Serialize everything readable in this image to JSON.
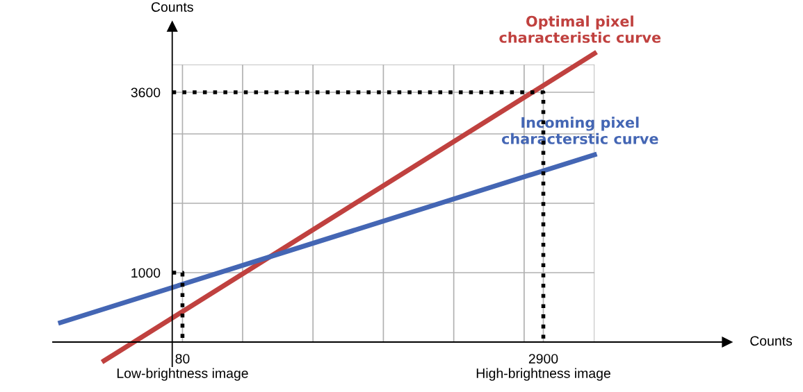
{
  "chart_data": {
    "type": "line",
    "xlabel": "Counts",
    "ylabel": "Counts",
    "xlim": [
      -933,
      4337
    ],
    "ylim": [
      -350,
      4550
    ],
    "xticks": [
      {
        "value": 80,
        "label": "80\nLow-brightness image"
      },
      {
        "value": 550,
        "label": null
      },
      {
        "value": 1100,
        "label": null
      },
      {
        "value": 1650,
        "label": null
      },
      {
        "value": 2200,
        "label": null
      },
      {
        "value": 2750,
        "label": null
      },
      {
        "value": 2900,
        "label": "2900\nHigh-brightness image"
      },
      {
        "value": 3300,
        "label": null
      }
    ],
    "yticks": [
      1000,
      {
        "value": 2000,
        "label": null
      },
      {
        "value": 3000,
        "label": null
      },
      3600,
      {
        "value": 4000,
        "label": null
      }
    ],
    "grid": true,
    "legend": false,
    "series": [
      {
        "name": "Optimal pixel\ncharacteristic curve",
        "color": "#c0413f",
        "x": [
          -533,
          3300
        ],
        "values": [
          -270,
          4160
        ],
        "line_style": "solid"
      },
      {
        "name": "Incoming pixel\ncharacterstic curve",
        "color": "#4466b4",
        "x": [
          -873,
          3300
        ],
        "values": [
          280,
          2700
        ],
        "line_style": "solid"
      },
      {
        "color": "#000000",
        "x": [
          0,
          80,
          80
        ],
        "values": [
          1000,
          1000,
          0
        ],
        "line_style": "dotted"
      },
      {
        "color": "#000000",
        "x": [
          0,
          2900,
          2900
        ],
        "values": [
          3600,
          3600,
          0
        ],
        "line_style": "dotted"
      }
    ]
  }
}
